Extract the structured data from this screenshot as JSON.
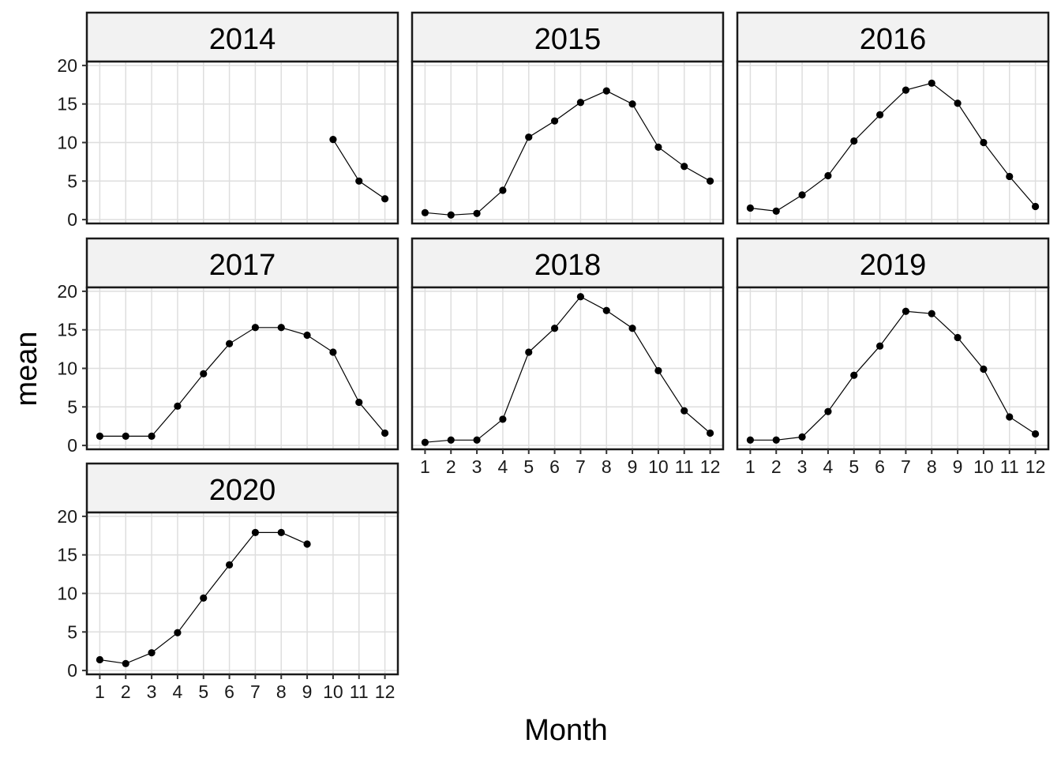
{
  "chart_data": {
    "type": "line",
    "facet_type": "grid",
    "xlabel": "Month",
    "ylabel": "mean",
    "x_ticks": [
      "1",
      "2",
      "3",
      "4",
      "5",
      "6",
      "7",
      "8",
      "9",
      "10",
      "11",
      "12"
    ],
    "y_ticks": [
      "0",
      "5",
      "10",
      "15",
      "20"
    ],
    "xlim": [
      0.5,
      12.5
    ],
    "ylim": [
      -0.5,
      20.5
    ],
    "grid": true,
    "panels": [
      {
        "title": "2014",
        "x": [
          10,
          11,
          12
        ],
        "y": [
          10.4,
          5.0,
          2.7
        ]
      },
      {
        "title": "2015",
        "x": [
          1,
          2,
          3,
          4,
          5,
          6,
          7,
          8,
          9,
          10,
          11,
          12
        ],
        "y": [
          0.9,
          0.6,
          0.8,
          3.8,
          10.7,
          12.8,
          15.2,
          16.7,
          15.0,
          9.4,
          6.9,
          5.0
        ]
      },
      {
        "title": "2016",
        "x": [
          1,
          2,
          3,
          4,
          5,
          6,
          7,
          8,
          9,
          10,
          11,
          12
        ],
        "y": [
          1.5,
          1.1,
          3.2,
          5.7,
          10.2,
          13.6,
          16.8,
          17.7,
          15.1,
          10.0,
          5.6,
          1.7
        ]
      },
      {
        "title": "2017",
        "x": [
          1,
          2,
          3,
          4,
          5,
          6,
          7,
          8,
          9,
          10,
          11,
          12
        ],
        "y": [
          1.2,
          1.2,
          1.2,
          5.1,
          9.3,
          13.2,
          15.3,
          15.3,
          14.3,
          12.1,
          5.6,
          1.6
        ]
      },
      {
        "title": "2018",
        "x": [
          1,
          2,
          3,
          4,
          5,
          6,
          7,
          8,
          9,
          10,
          11,
          12
        ],
        "y": [
          0.4,
          0.7,
          0.7,
          3.4,
          12.1,
          15.2,
          19.3,
          17.5,
          15.2,
          9.7,
          4.5,
          1.6
        ]
      },
      {
        "title": "2019",
        "x": [
          1,
          2,
          3,
          4,
          5,
          6,
          7,
          8,
          9,
          10,
          11,
          12
        ],
        "y": [
          0.7,
          0.7,
          1.1,
          4.4,
          9.1,
          12.9,
          17.4,
          17.1,
          14.0,
          9.9,
          3.7,
          1.5
        ]
      },
      {
        "title": "2020",
        "x": [
          1,
          2,
          3,
          4,
          5,
          6,
          7,
          8,
          9
        ],
        "y": [
          1.4,
          0.9,
          2.3,
          4.9,
          9.4,
          13.7,
          17.9,
          17.9,
          16.4
        ]
      }
    ]
  }
}
